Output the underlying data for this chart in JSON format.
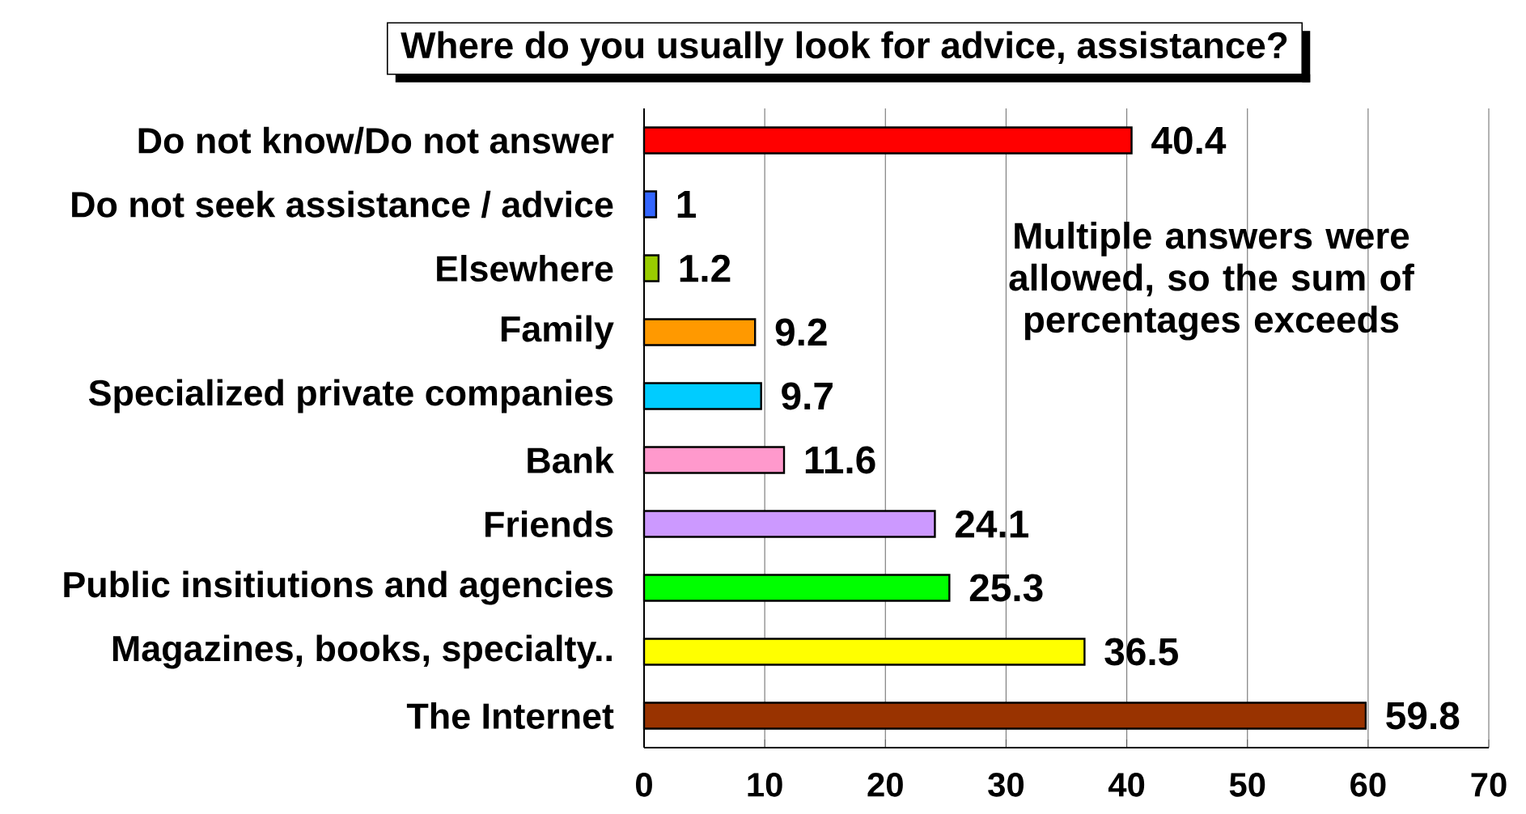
{
  "chart_data": {
    "type": "bar",
    "orientation": "horizontal",
    "title": "Where do you usually look for advice, assistance?",
    "categories": [
      "Do not know/Do not answer",
      "Do not seek assistance / advice",
      "Elsewhere",
      "Family",
      "Specialized private companies",
      "Bank",
      "Friends",
      "Public insitiutions and agencies",
      "Magazines, books, specialty..",
      "The Internet"
    ],
    "values": [
      40.4,
      1,
      1.2,
      9.2,
      9.7,
      11.6,
      24.1,
      25.3,
      36.5,
      59.8
    ],
    "colors": [
      "#ff0000",
      "#3366ff",
      "#99cc00",
      "#ff9900",
      "#00ccff",
      "#ff99cc",
      "#cc99ff",
      "#00ff00",
      "#ffff00",
      "#993300"
    ],
    "xlim": [
      0,
      70
    ],
    "xticks": [
      0,
      10,
      20,
      30,
      40,
      50,
      60,
      70
    ],
    "grid": "x",
    "data_labels": true,
    "annotations": [
      "Multiple answers were allowed, so the sum of percentages exceeds"
    ]
  }
}
